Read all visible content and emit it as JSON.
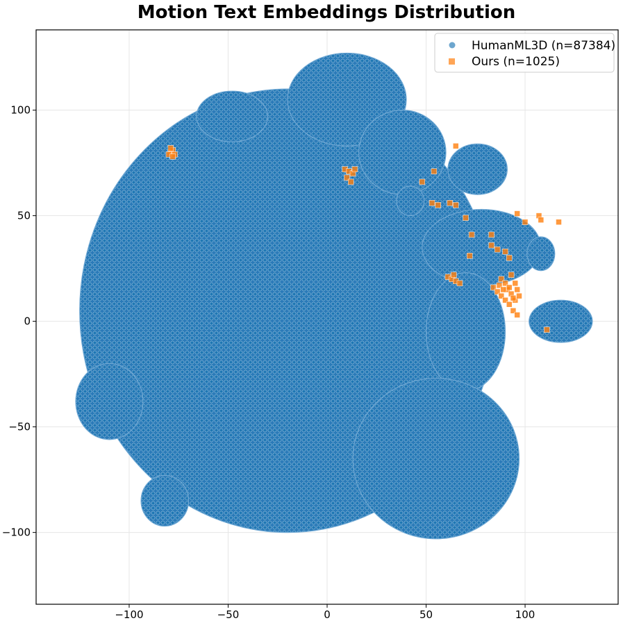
{
  "chart_data": {
    "type": "scatter",
    "title": "Motion Text Embeddings Distribution",
    "xlabel": "",
    "ylabel": "",
    "xlim": [
      -147,
      147
    ],
    "ylim": [
      -134,
      138
    ],
    "grid": true,
    "legend_position": "top-right",
    "x_ticks": [
      -100,
      -50,
      0,
      50,
      100
    ],
    "y_ticks": [
      -100,
      -50,
      0,
      50,
      100
    ],
    "x_tick_labels": [
      "−100",
      "−50",
      "0",
      "50",
      "100"
    ],
    "y_tick_labels": [
      "−100",
      "−50",
      "0",
      "50",
      "100"
    ],
    "series": [
      {
        "name": "HumanML3D (n=87384)",
        "label": "HumanML3D (n=87384)",
        "marker": "circle",
        "color": "#1f77b4",
        "count": 87384,
        "regions": [
          {
            "name": "main-cloud",
            "cx": -20,
            "cy": 5,
            "rx": 105,
            "ry": 105
          },
          {
            "name": "upper-left-cluster",
            "cx": -48,
            "cy": 97,
            "rx": 18,
            "ry": 12
          },
          {
            "name": "top-cluster",
            "cx": 10,
            "cy": 105,
            "rx": 30,
            "ry": 22
          },
          {
            "name": "top-right-cluster",
            "cx": 38,
            "cy": 80,
            "rx": 22,
            "ry": 20
          },
          {
            "name": "small-round-cluster",
            "cx": 42,
            "cy": 57,
            "rx": 7,
            "ry": 7
          },
          {
            "name": "right-upper-cluster",
            "cx": 76,
            "cy": 72,
            "rx": 15,
            "ry": 12
          },
          {
            "name": "right-middle-band",
            "cx": 78,
            "cy": 35,
            "rx": 30,
            "ry": 18
          },
          {
            "name": "right-cluster",
            "cx": 70,
            "cy": -5,
            "rx": 20,
            "ry": 28
          },
          {
            "name": "far-right-cluster",
            "cx": 118,
            "cy": 0,
            "rx": 16,
            "ry": 10
          },
          {
            "name": "far-right-small",
            "cx": 108,
            "cy": 32,
            "rx": 7,
            "ry": 8
          },
          {
            "name": "lower-right-cluster",
            "cx": 55,
            "cy": -65,
            "rx": 42,
            "ry": 38
          },
          {
            "name": "left-cluster",
            "cx": -110,
            "cy": -38,
            "rx": 17,
            "ry": 18
          },
          {
            "name": "lower-left-cluster",
            "cx": -82,
            "cy": -85,
            "rx": 12,
            "ry": 12
          }
        ]
      },
      {
        "name": "Ours (n=1025)",
        "label": "Ours (n=1025)",
        "marker": "square",
        "color": "#ff7f0e",
        "count": 1025,
        "points": [
          [
            -79,
            80
          ],
          [
            -78,
            81
          ],
          [
            -80,
            79
          ],
          [
            -77,
            79
          ],
          [
            -79,
            82
          ],
          [
            -78,
            78
          ],
          [
            9,
            72
          ],
          [
            11,
            71
          ],
          [
            13,
            70
          ],
          [
            10,
            68
          ],
          [
            12,
            66
          ],
          [
            14,
            72
          ],
          [
            48,
            66
          ],
          [
            54,
            71
          ],
          [
            53,
            56
          ],
          [
            56,
            55
          ],
          [
            62,
            56
          ],
          [
            65,
            55
          ],
          [
            65,
            83
          ],
          [
            70,
            49
          ],
          [
            73,
            41
          ],
          [
            72,
            31
          ],
          [
            83,
            41
          ],
          [
            83,
            36
          ],
          [
            86,
            34
          ],
          [
            90,
            33
          ],
          [
            92,
            30
          ],
          [
            96,
            51
          ],
          [
            100,
            47
          ],
          [
            107,
            50
          ],
          [
            108,
            48
          ],
          [
            117,
            47
          ],
          [
            61,
            21
          ],
          [
            63,
            20
          ],
          [
            65,
            19
          ],
          [
            67,
            18
          ],
          [
            64,
            22
          ],
          [
            84,
            16
          ],
          [
            86,
            14
          ],
          [
            88,
            12
          ],
          [
            88,
            20
          ],
          [
            90,
            18
          ],
          [
            90,
            10
          ],
          [
            91,
            15
          ],
          [
            92,
            8
          ],
          [
            93,
            22
          ],
          [
            93,
            13
          ],
          [
            94,
            5
          ],
          [
            95,
            18
          ],
          [
            95,
            10
          ],
          [
            96,
            15
          ],
          [
            96,
            3
          ],
          [
            97,
            12
          ],
          [
            87,
            17
          ],
          [
            89,
            15
          ],
          [
            92,
            16
          ],
          [
            94,
            11
          ],
          [
            111,
            -4
          ]
        ]
      }
    ]
  }
}
